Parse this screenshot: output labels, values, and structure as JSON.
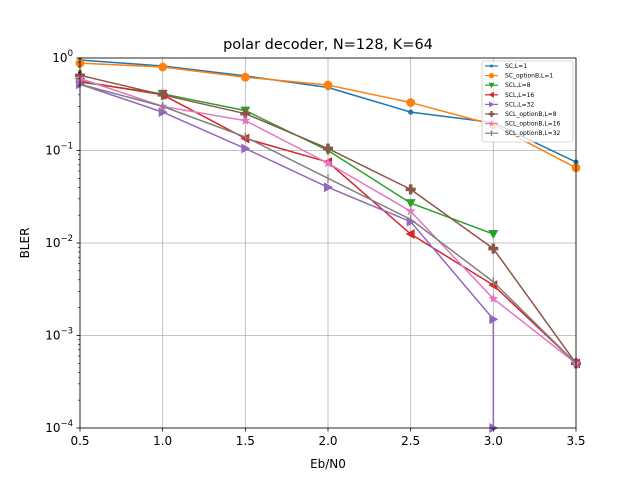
{
  "chart_data": {
    "type": "line",
    "title": "polar decoder, N=128, K=64",
    "xlabel": "Eb/N0",
    "ylabel": "BLER",
    "xlim": [
      0.5,
      3.5
    ],
    "ylim": [
      0.0001,
      1
    ],
    "yscale": "log",
    "grid": true,
    "legend_position": "top-right",
    "x_ticks": [
      "0.5",
      "1.0",
      "1.5",
      "2.0",
      "2.5",
      "3.0",
      "3.5"
    ],
    "y_ticks": [
      {
        "base": "10",
        "exp": "0"
      },
      {
        "base": "10",
        "exp": "−1"
      },
      {
        "base": "10",
        "exp": "−2"
      },
      {
        "base": "10",
        "exp": "−3"
      },
      {
        "base": "10",
        "exp": "−4"
      }
    ],
    "series": [
      {
        "name": "SC,L=1",
        "color": "#1f77b4",
        "marker": "circle-small",
        "x": [
          0.5,
          1.0,
          1.5,
          2.0,
          2.5,
          3.0,
          3.5
        ],
        "y": [
          0.95,
          0.82,
          0.64,
          0.48,
          0.26,
          0.2,
          0.075
        ]
      },
      {
        "name": "SC_optionB,L=1",
        "color": "#ff7f0e",
        "marker": "circle",
        "x": [
          0.5,
          1.0,
          1.5,
          2.0,
          2.5,
          3.0,
          3.5
        ],
        "y": [
          0.88,
          0.8,
          0.62,
          0.51,
          0.33,
          0.19,
          0.065
        ]
      },
      {
        "name": "SCL,L=8",
        "color": "#2ca02c",
        "marker": "triangle-down",
        "x": [
          0.5,
          1.0,
          1.5,
          2.0,
          2.5,
          3.0
        ],
        "y": [
          0.55,
          0.41,
          0.27,
          0.1,
          0.027,
          0.0125
        ]
      },
      {
        "name": "SCL,L=16",
        "color": "#d62728",
        "marker": "triangle-left",
        "x": [
          0.5,
          1.0,
          1.5,
          2.0,
          2.5,
          3.0,
          3.5
        ],
        "y": [
          0.56,
          0.4,
          0.135,
          0.075,
          0.0125,
          0.0035,
          0.0005
        ]
      },
      {
        "name": "SCL,L=32",
        "color": "#9467bd",
        "marker": "triangle-right",
        "x": [
          0.5,
          1.0,
          1.5,
          2.0,
          2.5,
          3.0,
          3.0
        ],
        "y": [
          0.52,
          0.26,
          0.105,
          0.04,
          0.017,
          0.0015,
          0.0001
        ]
      },
      {
        "name": "SCL_optionB,L=8",
        "color": "#8c564b",
        "marker": "plus",
        "x": [
          0.5,
          1.0,
          1.5,
          2.0,
          2.5,
          3.0,
          3.5
        ],
        "y": [
          0.65,
          0.4,
          0.25,
          0.105,
          0.038,
          0.0087,
          0.0005
        ]
      },
      {
        "name": "SCL_optionB,L=16",
        "color": "#e377c2",
        "marker": "star",
        "x": [
          0.5,
          1.0,
          1.5,
          2.0,
          2.5,
          3.0,
          3.5
        ],
        "y": [
          0.6,
          0.3,
          0.21,
          0.073,
          0.022,
          0.0025,
          0.0005
        ]
      },
      {
        "name": "SCL_optionB,L=32",
        "color": "#7f7f7f",
        "marker": "vline",
        "x": [
          0.5,
          1.0,
          1.5,
          2.0,
          2.5,
          3.0,
          3.5
        ],
        "y": [
          0.52,
          0.3,
          0.14,
          0.05,
          0.018,
          0.0038,
          0.0005
        ]
      }
    ]
  }
}
